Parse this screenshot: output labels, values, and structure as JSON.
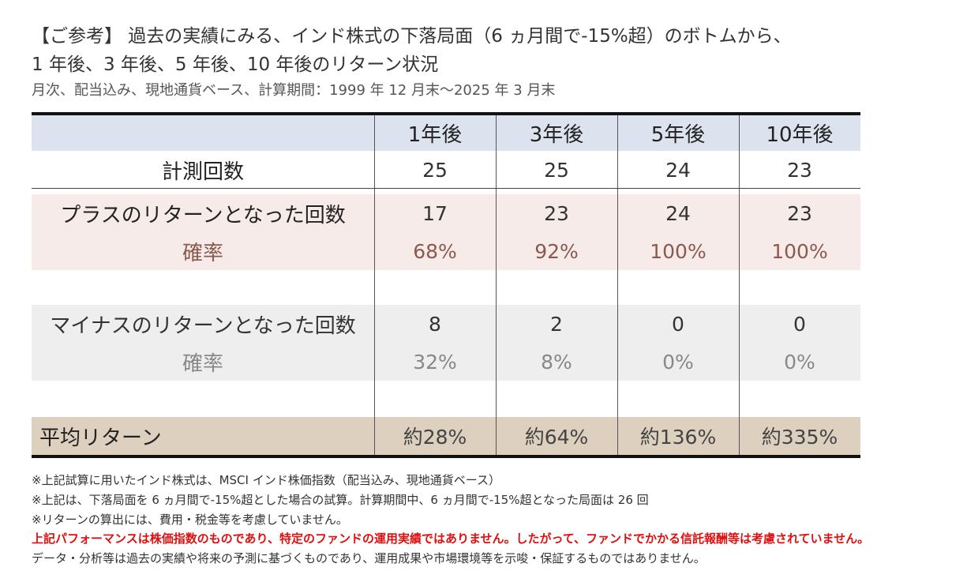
{
  "header": {
    "title_line1": "【ご参考】 過去の実績にみる、インド株式の下落局面（6 ヵ月間で-15%超）のボトムから、",
    "title_line2": "1 年後、3 年後、5 年後、10 年後のリターン状況",
    "subtitle": "月次、配当込み、現地通貨ベース、計算期間：1999 年 12 月末～2025 年 3 月末"
  },
  "table": {
    "columns": [
      "1年後",
      "3年後",
      "5年後",
      "10年後"
    ],
    "measure_row": {
      "label": "計測回数",
      "values": [
        "25",
        "25",
        "24",
        "23"
      ]
    },
    "plus_row": {
      "label": "プラスのリターンとなった回数",
      "values": [
        "17",
        "23",
        "24",
        "23"
      ],
      "rate_label": "確率",
      "rates": [
        "68%",
        "92%",
        "100%",
        "100%"
      ]
    },
    "minus_row": {
      "label": "マイナスのリターンとなった回数",
      "values": [
        "8",
        "2",
        "0",
        "0"
      ],
      "rate_label": "確率",
      "rates": [
        "32%",
        "8%",
        "0%",
        "0%"
      ]
    },
    "average_row": {
      "label": "平均リターン",
      "values": [
        "約28%",
        "約64%",
        "約136%",
        "約335%"
      ]
    }
  },
  "notes": [
    "※上記試算に用いたインド株式は、MSCI インド株価指数（配当込み、現地通貨ベース）",
    "※上記は、下落局面を 6 ヵ月間で-15%超とした場合の試算。計算期間中、6 ヵ月間で-15%超となった局面は 26 回",
    "※リターンの算出には、費用・税金等を考慮していません。"
  ],
  "disclaimer_red": "上記パフォーマンスは株価指数のものであり、特定のファンドの運用実績ではありません。したがって、ファンドでかかる信託報酬等は考慮されていません。",
  "disclaimer_footer": "データ・分析等は過去の実績や将来の予測に基づくものであり、運用成果や市場環境等を示唆・保証するものではありません。",
  "colors": {
    "header_band": "#dde3ee",
    "plus_band": "#f6ebe9",
    "minus_band": "#eeeeee",
    "average_band": "#ddd0bf",
    "plus_rate_text": "#8b5a4f",
    "minus_rate_text": "#888888",
    "disclaimer_red": "#dd1111"
  }
}
